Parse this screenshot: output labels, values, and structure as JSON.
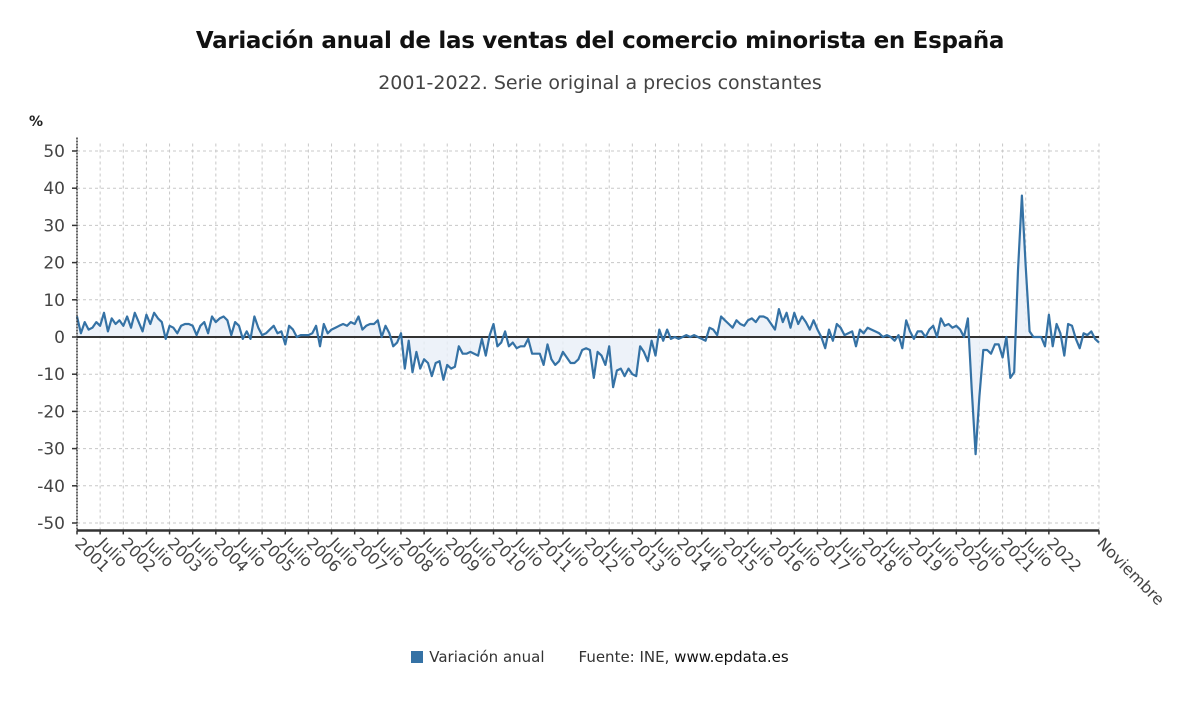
{
  "title": "Variación anual de las ventas del comercio minorista en España",
  "subtitle": "2001-2022. Serie original a precios constantes",
  "legend": {
    "series_label": "Variación anual",
    "source_prefix": "Fuente: INE,",
    "source_url": "www.epdata.es"
  },
  "colors": {
    "line": "#3572a5",
    "fill": "#e8eff7",
    "zero": "#333333",
    "grid": "#c8c8c8"
  },
  "chart_data": {
    "type": "line",
    "title": "Variación anual de las ventas del comercio minorista en España",
    "subtitle": "2001-2022. Serie original a precios constantes",
    "ylabel": "%",
    "xlabel": "",
    "ylim": [
      -52,
      52
    ],
    "yticks": [
      50,
      40,
      30,
      20,
      10,
      0,
      -10,
      -20,
      -30,
      -40,
      -50
    ],
    "ytick_labels": [
      "50",
      "40",
      "30",
      "20",
      "10",
      "0",
      "-10",
      "-20",
      "-30",
      "-40",
      "-50"
    ],
    "xtick_labels": [
      "2001",
      "Julio",
      "2002",
      "Julio",
      "2003",
      "Julio",
      "2004",
      "Julio",
      "2005",
      "Julio",
      "2006",
      "Julio",
      "2007",
      "Julio",
      "2008",
      "Julio",
      "2009",
      "Julio",
      "2010",
      "Julio",
      "2011",
      "Julio",
      "2012",
      "Julio",
      "2013",
      "Julio",
      "2014",
      "Julio",
      "2015",
      "Julio",
      "2016",
      "Julio",
      "2017",
      "Julio",
      "2018",
      "Julio",
      "2019",
      "Julio",
      "2020",
      "Julio",
      "2021",
      "Julio",
      "2022",
      "Noviembre"
    ],
    "grid": true,
    "legend_position": "bottom",
    "x_start": "2001-01",
    "x_end": "2022-11",
    "series": [
      {
        "name": "Variación anual",
        "values": [
          5.5,
          1.0,
          4.0,
          2.0,
          2.5,
          4.0,
          3.0,
          6.5,
          1.5,
          5.0,
          3.5,
          4.5,
          3.0,
          5.5,
          2.5,
          6.5,
          4.0,
          1.5,
          6.0,
          3.5,
          6.5,
          5.0,
          4.0,
          -0.5,
          3.0,
          2.5,
          1.0,
          3.0,
          3.5,
          3.5,
          3.0,
          0.5,
          3.0,
          4.0,
          1.0,
          5.5,
          4.0,
          5.0,
          5.5,
          4.5,
          0.5,
          4.0,
          3.0,
          -0.5,
          1.5,
          -0.5,
          5.5,
          2.5,
          0.5,
          1.0,
          2.0,
          3.0,
          1.0,
          1.5,
          -2.0,
          3.0,
          2.0,
          0.0,
          0.5,
          0.5,
          0.5,
          1.0,
          3.0,
          -2.5,
          3.5,
          1.0,
          2.0,
          2.5,
          3.0,
          3.5,
          3.0,
          4.0,
          3.5,
          5.5,
          2.0,
          3.0,
          3.5,
          3.5,
          4.5,
          0.0,
          3.0,
          1.0,
          -2.5,
          -1.5,
          1.0,
          -8.5,
          -1.0,
          -9.5,
          -4.0,
          -8.5,
          -6.0,
          -7.0,
          -10.5,
          -7.0,
          -6.5,
          -11.5,
          -7.5,
          -8.5,
          -8.0,
          -2.5,
          -4.5,
          -4.5,
          -4.0,
          -4.5,
          -5.0,
          -0.5,
          -5.0,
          0.5,
          3.5,
          -2.5,
          -1.5,
          1.5,
          -2.5,
          -1.5,
          -3.0,
          -2.5,
          -2.5,
          -0.5,
          -4.5,
          -4.5,
          -4.5,
          -7.5,
          -2.0,
          -6.0,
          -7.5,
          -6.5,
          -4.0,
          -5.5,
          -7.0,
          -7.0,
          -6.0,
          -3.5,
          -3.0,
          -3.5,
          -11.0,
          -4.0,
          -5.0,
          -7.5,
          -2.5,
          -13.5,
          -9.0,
          -8.5,
          -10.5,
          -8.5,
          -10.0,
          -10.5,
          -2.5,
          -4.0,
          -6.5,
          -1.0,
          -5.0,
          2.0,
          -1.0,
          2.0,
          -0.5,
          0.0,
          -0.5,
          0.0,
          0.5,
          0.0,
          0.5,
          0.0,
          -0.5,
          -1.0,
          2.5,
          2.0,
          0.5,
          5.5,
          4.5,
          3.5,
          2.5,
          4.5,
          3.5,
          3.0,
          4.5,
          5.0,
          4.0,
          5.5,
          5.5,
          5.0,
          3.5,
          2.0,
          7.5,
          4.0,
          6.5,
          2.5,
          6.5,
          3.5,
          5.5,
          4.0,
          2.0,
          4.5,
          2.0,
          0.0,
          -3.0,
          2.0,
          -1.0,
          3.5,
          2.5,
          0.5,
          1.0,
          1.5,
          -2.5,
          2.0,
          1.0,
          2.5,
          2.0,
          1.5,
          1.0,
          0.0,
          0.5,
          0.0,
          -1.0,
          0.5,
          -3.0,
          4.5,
          1.5,
          -0.5,
          1.5,
          1.5,
          0.0,
          2.0,
          3.0,
          0.0,
          5.0,
          3.0,
          3.5,
          2.5,
          3.0,
          2.0,
          0.0,
          5.0,
          -14.0,
          -31.5,
          -16.0,
          -3.5,
          -3.5,
          -4.5,
          -2.0,
          -2.0,
          -5.5,
          0.0,
          -11.0,
          -9.5,
          18.0,
          38.0,
          19.0,
          1.5,
          0.0,
          0.0,
          0.0,
          -2.5,
          6.0,
          -2.5,
          3.5,
          1.0,
          -5.0,
          3.5,
          3.0,
          -0.5,
          -3.0,
          1.0,
          0.5,
          1.5,
          -0.5,
          -1.5
        ]
      }
    ]
  }
}
